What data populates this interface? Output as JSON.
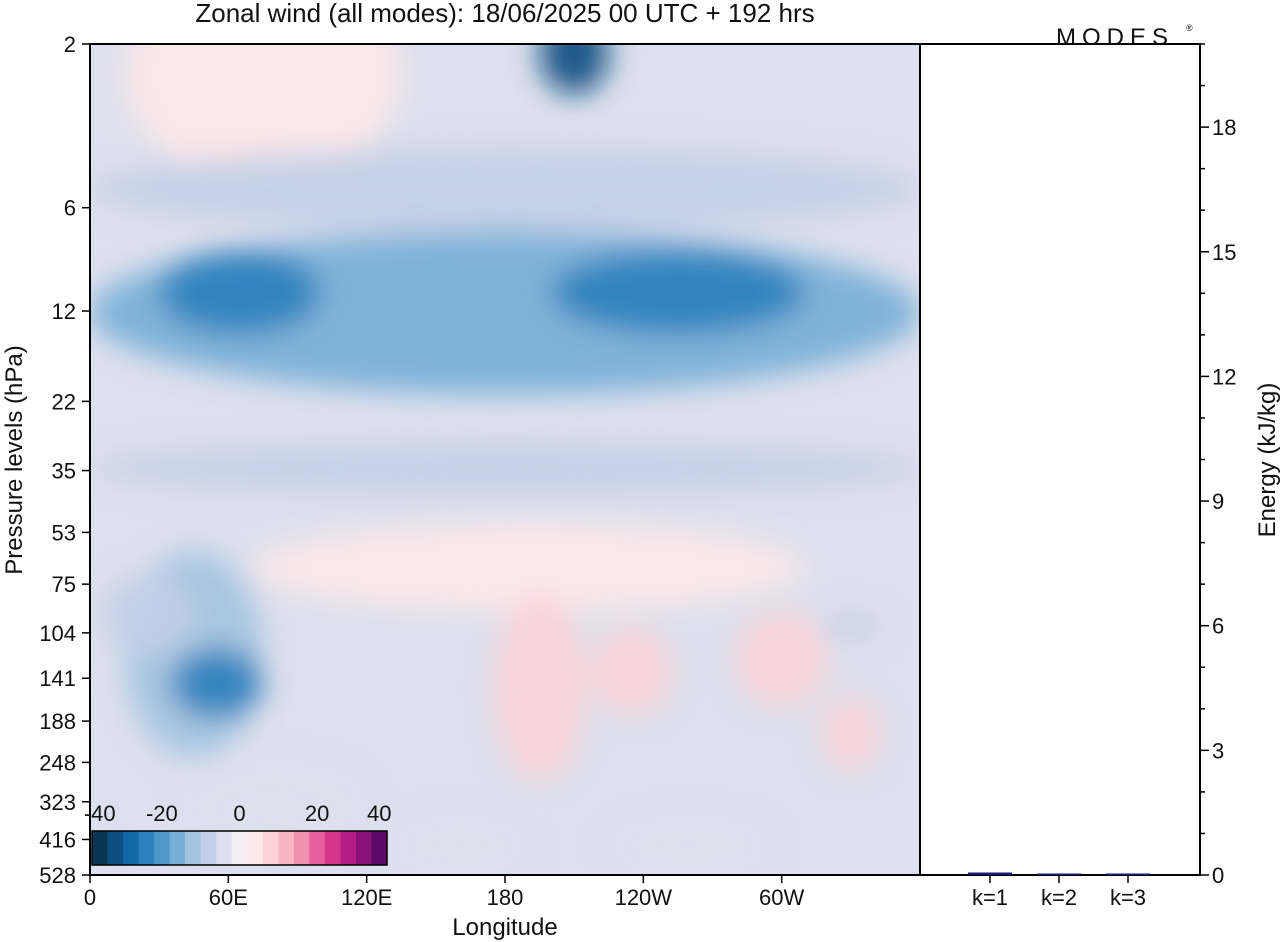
{
  "title": "Zonal wind (all modes):  18/06/2025  00 UTC  + 192 hrs",
  "logo_text": "MODES",
  "chart_data": [
    {
      "type": "heatmap",
      "xlabel": "Longitude",
      "ylabel": "Pressure levels (hPa)",
      "x_ticks": [
        "0",
        "60E",
        "120E",
        "180",
        "120W",
        "60W"
      ],
      "y_ticks": [
        "2",
        "6",
        "12",
        "22",
        "35",
        "53",
        "75",
        "104",
        "141",
        "188",
        "248",
        "323",
        "416",
        "528"
      ],
      "colorbar": {
        "tick_labels": [
          "-40",
          "-20",
          "0",
          "20",
          "40"
        ],
        "colors": [
          "#0b3653",
          "#0d4f80",
          "#1267a6",
          "#2b80bd",
          "#4f97c9",
          "#78afd6",
          "#a3c3e0",
          "#c3cfe6",
          "#dde0ee",
          "#f4eef4",
          "#fde8e8",
          "#fbd3d6",
          "#f7b7c2",
          "#f18fae",
          "#e75f9c",
          "#d6358c",
          "#b41d84",
          "#8a1279",
          "#5c0a69"
        ]
      },
      "blobs": [
        {
          "value": -6,
          "lon": 45,
          "level": 2.5,
          "lon_span": 100,
          "level_span": 6
        },
        {
          "value": 4,
          "lon": 75,
          "level": 3,
          "lon_span": 120,
          "level_span": 4
        },
        {
          "value": -12,
          "lon": 180,
          "level": 5.5,
          "lon_span": 360,
          "level_span": 3
        },
        {
          "value": -22,
          "lon": 180,
          "level": 14,
          "lon_span": 360,
          "level_span": 14
        },
        {
          "value": -32,
          "lon": 65,
          "level": 11,
          "lon_span": 70,
          "level_span": 6
        },
        {
          "value": -32,
          "lon": 255,
          "level": 11,
          "lon_span": 110,
          "level_span": 6
        },
        {
          "value": -38,
          "lon": 210,
          "level": 2.2,
          "lon_span": 30,
          "level_span": 1.2
        },
        {
          "value": -8,
          "lon": 180,
          "level": 35,
          "lon_span": 360,
          "level_span": 12
        },
        {
          "value": -14,
          "lon": 45,
          "level": 150,
          "lon_span": 60,
          "level_span": 180
        },
        {
          "value": -28,
          "lon": 55,
          "level": 150,
          "lon_span": 40,
          "level_span": 70
        },
        {
          "value": -10,
          "lon": 25,
          "level": 95,
          "lon_span": 40,
          "level_span": 50
        },
        {
          "value": -6,
          "lon": 80,
          "level": 350,
          "lon_span": 80,
          "level_span": 200
        },
        {
          "value": 6,
          "lon": 190,
          "level": 70,
          "lon_span": 240,
          "level_span": 40
        },
        {
          "value": 10,
          "lon": 195,
          "level": 180,
          "lon_span": 40,
          "level_span": 200
        },
        {
          "value": 12,
          "lon": 235,
          "level": 140,
          "lon_span": 35,
          "level_span": 80
        },
        {
          "value": 8,
          "lon": 300,
          "level": 130,
          "lon_span": 40,
          "level_span": 80
        },
        {
          "value": 8,
          "lon": 330,
          "level": 210,
          "lon_span": 25,
          "level_span": 100
        },
        {
          "value": -6,
          "lon": 160,
          "level": 440,
          "lon_span": 60,
          "level_span": 150
        },
        {
          "value": -5,
          "lon": 260,
          "level": 440,
          "lon_span": 70,
          "level_span": 150
        },
        {
          "value": -8,
          "lon": 330,
          "level": 100,
          "lon_span": 25,
          "level_span": 15
        }
      ]
    },
    {
      "type": "bar",
      "ylabel": "Energy (kJ/kg)",
      "categories": [
        "k=1",
        "k=2",
        "k=3"
      ],
      "values": [
        0.06,
        0.02,
        0.02
      ],
      "ylim": [
        0,
        20
      ],
      "y_ticks": [
        0,
        3,
        6,
        9,
        12,
        15,
        18
      ],
      "bar_color": "#1a1a7a"
    }
  ]
}
